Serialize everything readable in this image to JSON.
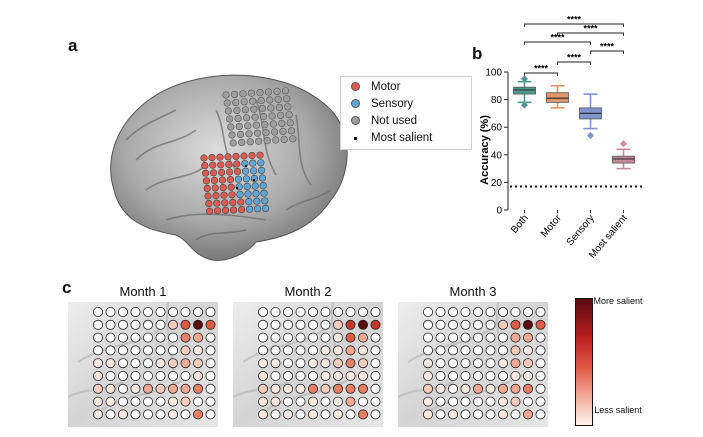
{
  "panels": {
    "a": "a",
    "b": "b",
    "c": "c"
  },
  "legend": {
    "items": [
      {
        "label": "Motor",
        "color": "#e05a4f"
      },
      {
        "label": "Sensory",
        "color": "#5fa5d6"
      },
      {
        "label": "Not used",
        "color": "#9e9e9e"
      },
      {
        "label": "Most salient",
        "color": "#111111"
      }
    ]
  },
  "chart_data": [
    {
      "type": "box",
      "ylabel": "Accuracy (%)",
      "ylim": [
        0,
        100
      ],
      "yticks": [
        0,
        20,
        40,
        60,
        80,
        100
      ],
      "categories": [
        "Both",
        "Motor",
        "Sensory",
        "Most salient"
      ],
      "colors": [
        "#4f9a8e",
        "#e0956a",
        "#7f93cf",
        "#c98a97"
      ],
      "boxes": [
        {
          "whisker_low": 78,
          "q1": 84,
          "median": 87,
          "q3": 89,
          "whisker_high": 93,
          "outliers": [
            76,
            95
          ]
        },
        {
          "whisker_low": 74,
          "q1": 78,
          "median": 81,
          "q3": 85,
          "whisker_high": 90,
          "outliers": []
        },
        {
          "whisker_low": 59,
          "q1": 66,
          "median": 70,
          "q3": 74,
          "whisker_high": 84,
          "outliers": [
            54
          ]
        },
        {
          "whisker_low": 30,
          "q1": 34,
          "median": 37,
          "q3": 39,
          "whisker_high": 44,
          "outliers": [
            48
          ]
        }
      ],
      "chance_level": 17,
      "significance": [
        {
          "from": 0,
          "to": 1,
          "label": "****"
        },
        {
          "from": 1,
          "to": 2,
          "label": "****"
        },
        {
          "from": 2,
          "to": 3,
          "label": "****"
        },
        {
          "from": 0,
          "to": 2,
          "label": "****"
        },
        {
          "from": 1,
          "to": 3,
          "label": "****"
        },
        {
          "from": 0,
          "to": 3,
          "label": "****"
        }
      ]
    },
    {
      "type": "heatmap",
      "months": [
        "Month 1",
        "Month 2",
        "Month 3"
      ],
      "colorbar": {
        "top": "More salient",
        "bottom": "Less salient"
      },
      "salience": [
        [
          [
            0,
            0,
            0,
            0,
            0,
            0,
            0,
            0,
            0,
            0
          ],
          [
            0,
            0,
            0,
            0,
            0,
            0,
            2,
            5,
            9,
            5
          ],
          [
            0,
            0,
            0,
            0,
            0,
            0,
            0,
            4,
            3,
            0
          ],
          [
            0,
            0,
            0,
            0,
            0,
            0,
            0,
            2,
            1,
            0
          ],
          [
            1,
            1,
            0,
            0,
            0,
            1,
            2,
            3,
            2,
            0
          ],
          [
            1,
            0,
            0,
            0,
            0,
            0,
            0,
            0,
            1,
            0
          ],
          [
            2,
            1,
            0,
            1,
            3,
            2,
            3,
            3,
            4,
            0
          ],
          [
            1,
            1,
            0,
            0,
            0,
            0,
            1,
            2,
            0,
            0
          ],
          [
            1,
            0,
            1,
            0,
            0,
            0,
            1,
            0,
            4,
            0
          ]
        ],
        [
          [
            0,
            0,
            0,
            0,
            0,
            0,
            0,
            0,
            0,
            0
          ],
          [
            0,
            0,
            0,
            0,
            0,
            0,
            2,
            6,
            9,
            6
          ],
          [
            0,
            0,
            0,
            0,
            0,
            0,
            1,
            5,
            3,
            0
          ],
          [
            0,
            0,
            0,
            0,
            0,
            1,
            1,
            3,
            1,
            0
          ],
          [
            1,
            1,
            0,
            0,
            1,
            1,
            2,
            4,
            2,
            0
          ],
          [
            1,
            0,
            0,
            0,
            0,
            1,
            1,
            1,
            1,
            0
          ],
          [
            2,
            1,
            1,
            1,
            4,
            2,
            4,
            4,
            4,
            0
          ],
          [
            1,
            1,
            0,
            0,
            1,
            0,
            1,
            3,
            0,
            0
          ],
          [
            1,
            0,
            1,
            0,
            1,
            0,
            1,
            0,
            4,
            0
          ]
        ],
        [
          [
            0,
            0,
            0,
            0,
            0,
            0,
            0,
            0,
            0,
            0
          ],
          [
            0,
            0,
            0,
            0,
            0,
            0,
            2,
            5,
            9,
            5
          ],
          [
            0,
            0,
            0,
            0,
            0,
            0,
            0,
            3,
            3,
            0
          ],
          [
            0,
            0,
            0,
            0,
            0,
            0,
            0,
            2,
            1,
            0
          ],
          [
            1,
            0,
            0,
            0,
            0,
            0,
            1,
            3,
            2,
            0
          ],
          [
            1,
            0,
            0,
            0,
            0,
            0,
            0,
            1,
            1,
            0
          ],
          [
            2,
            1,
            0,
            1,
            3,
            1,
            3,
            3,
            4,
            0
          ],
          [
            1,
            0,
            0,
            0,
            0,
            0,
            1,
            2,
            0,
            0
          ],
          [
            1,
            0,
            1,
            0,
            0,
            0,
            1,
            0,
            3,
            0
          ]
        ]
      ]
    }
  ]
}
